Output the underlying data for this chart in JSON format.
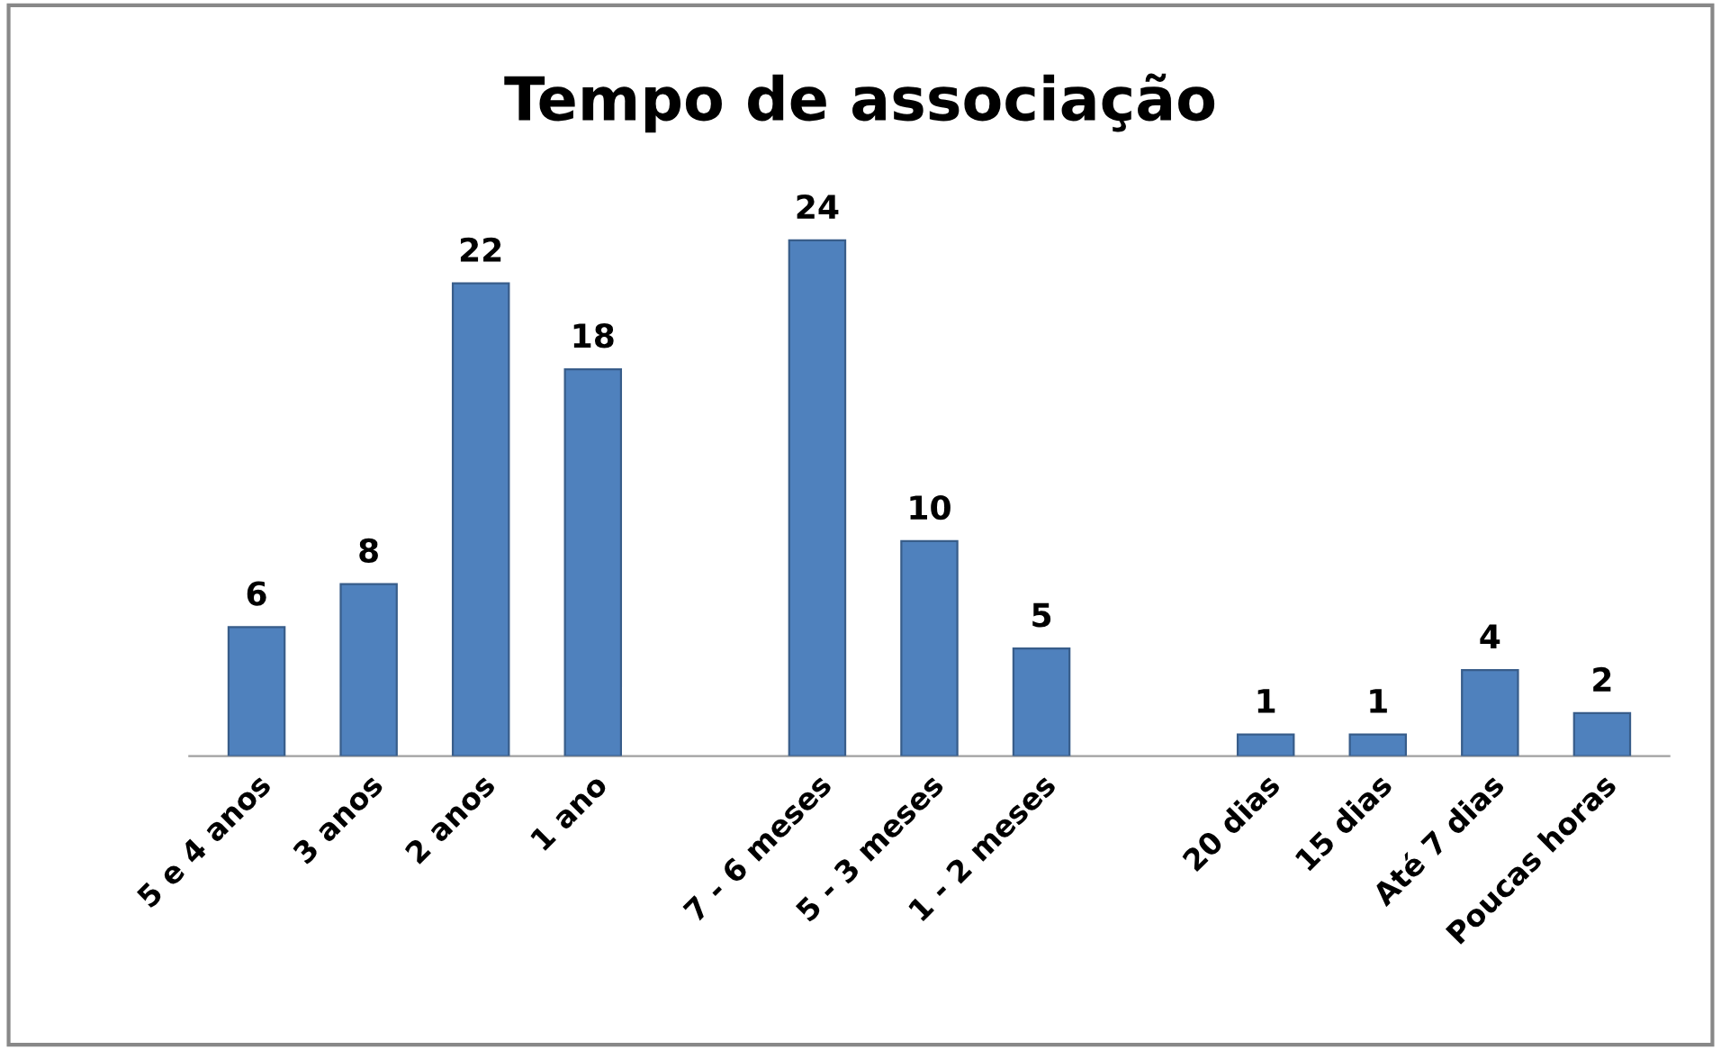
{
  "chart_data": {
    "type": "bar",
    "title": "Tempo de associação",
    "categories": [
      "5 e 4 anos",
      "3 anos",
      "2 anos",
      "1 ano",
      null,
      "7 - 6 meses",
      "5 - 3 meses",
      "1 - 2 meses",
      null,
      "20 dias",
      "15 dias",
      "Até 7 dias",
      "Poucas horas"
    ],
    "values": [
      6,
      8,
      22,
      18,
      null,
      24,
      10,
      5,
      null,
      1,
      1,
      4,
      2
    ],
    "color": "#4f81bd",
    "data_labels": true,
    "grid": false,
    "legend": false
  }
}
